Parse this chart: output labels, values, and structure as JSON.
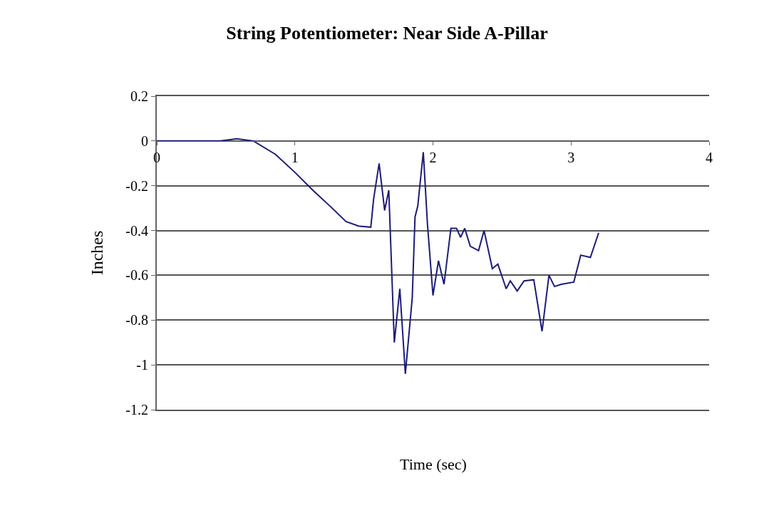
{
  "chart_data": {
    "type": "line",
    "title": "String Potentiometer: Near Side A-Pillar",
    "xlabel": "Time (sec)",
    "ylabel": "Inches",
    "series": [
      {
        "color": "#1c1c78",
        "x": [
          0,
          0.46,
          0.58,
          0.7,
          0.86,
          1.0,
          1.13,
          1.27,
          1.37,
          1.46,
          1.55,
          1.57,
          1.61,
          1.65,
          1.68,
          1.69,
          1.72,
          1.76,
          1.8,
          1.85,
          1.87,
          1.89,
          1.93,
          1.96,
          2.0,
          2.04,
          2.08,
          2.13,
          2.17,
          2.2,
          2.23,
          2.27,
          2.33,
          2.37,
          2.43,
          2.47,
          2.53,
          2.56,
          2.61,
          2.66,
          2.73,
          2.79,
          2.84,
          2.88,
          2.93,
          3.02,
          3.07,
          3.14,
          3.2
        ],
        "values": [
          0,
          0,
          0.01,
          0,
          -0.06,
          -0.14,
          -0.22,
          -0.3,
          -0.36,
          -0.38,
          -0.385,
          -0.26,
          -0.1,
          -0.31,
          -0.22,
          -0.39,
          -0.9,
          -0.66,
          -1.04,
          -0.7,
          -0.34,
          -0.29,
          -0.05,
          -0.37,
          -0.69,
          -0.535,
          -0.64,
          -0.39,
          -0.39,
          -0.43,
          -0.39,
          -0.47,
          -0.49,
          -0.4,
          -0.57,
          -0.55,
          -0.66,
          -0.625,
          -0.67,
          -0.625,
          -0.62,
          -0.85,
          -0.6,
          -0.65,
          -0.64,
          -0.63,
          -0.51,
          -0.52,
          -0.41
        ]
      }
    ],
    "xlim": [
      0,
      4
    ],
    "xticks": [
      0,
      1,
      2,
      3,
      4
    ],
    "ylim": [
      -1.2,
      0.2
    ],
    "yticks": [
      0.2,
      0,
      -0.2,
      -0.4,
      -0.6,
      -0.8,
      -1,
      -1.2
    ],
    "grid": "y",
    "marker": "none",
    "line_style": "solid"
  }
}
